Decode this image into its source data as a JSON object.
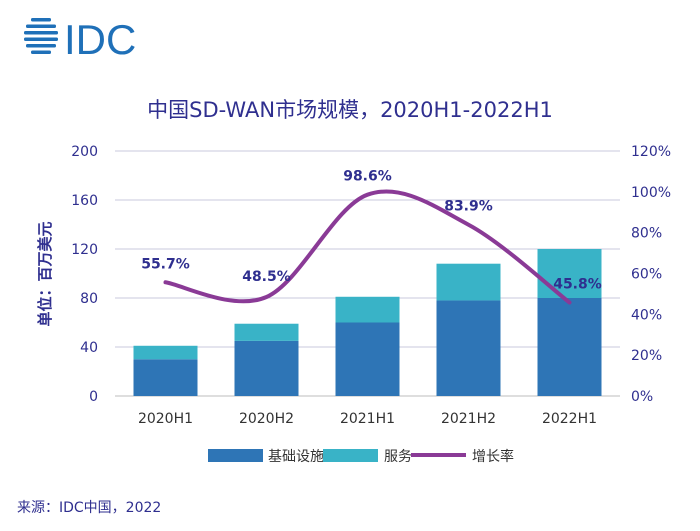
{
  "brand": {
    "logo_text": "IDC",
    "logo_color": "#1f70b8"
  },
  "source": "来源：IDC中国，2022",
  "colors": {
    "infrastructure": "#2e75b6",
    "services": "#39b3c7",
    "growth": "#8a3a96",
    "axis_text": "#2f2f8f",
    "grid": "#c9c9de"
  },
  "chart_data": {
    "type": "bar",
    "title": "中国SD-WAN市场规模，2020H1-2022H1",
    "ylabel": "单位：百万美元",
    "y2label": "",
    "categories": [
      "2020H1",
      "2020H2",
      "2021H1",
      "2021H2",
      "2022H1"
    ],
    "ylim": [
      0,
      200
    ],
    "y_ticks": [
      "0",
      "40",
      "80",
      "120",
      "160",
      "200"
    ],
    "y2lim": [
      0,
      120
    ],
    "y2_ticks": [
      "0%",
      "20%",
      "40%",
      "60%",
      "80%",
      "100%",
      "120%"
    ],
    "stacked": true,
    "grid": true,
    "legend_position": "bottom",
    "series": [
      {
        "name": "基础设施",
        "type": "bar",
        "values": [
          30,
          45,
          60,
          78,
          80
        ]
      },
      {
        "name": "服务",
        "type": "bar",
        "values": [
          11,
          14,
          21,
          30,
          40
        ]
      },
      {
        "name": "增长率",
        "type": "line",
        "axis": "right",
        "values": [
          55.7,
          48.5,
          98.6,
          83.9,
          45.8
        ],
        "labels": [
          "55.7%",
          "48.5%",
          "98.6%",
          "83.9%",
          "45.8%"
        ]
      }
    ]
  }
}
